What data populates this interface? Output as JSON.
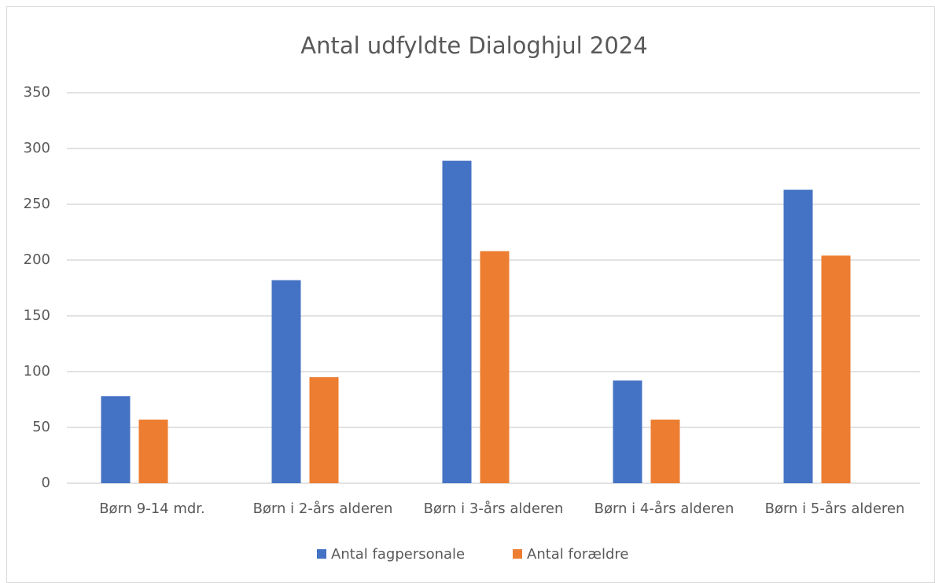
{
  "chart_data": {
    "type": "bar",
    "title": "Antal udfyldte Dialoghjul 2024",
    "categories": [
      "Børn 9-14 mdr.",
      "Børn i 2-års alderen",
      "Børn i 3-års alderen",
      "Børn i 4-års alderen",
      "Børn i 5-års alderen"
    ],
    "series": [
      {
        "name": "Antal fagpersonale",
        "color": "#4472c4",
        "values": [
          78,
          182,
          289,
          92,
          263
        ]
      },
      {
        "name": "Antal forældre",
        "color": "#ed7d31",
        "values": [
          57,
          95,
          208,
          57,
          204
        ]
      }
    ],
    "ylim": [
      0,
      350
    ],
    "yticks": [
      0,
      50,
      100,
      150,
      200,
      250,
      300,
      350
    ],
    "grid": true,
    "legend": "bottom"
  }
}
